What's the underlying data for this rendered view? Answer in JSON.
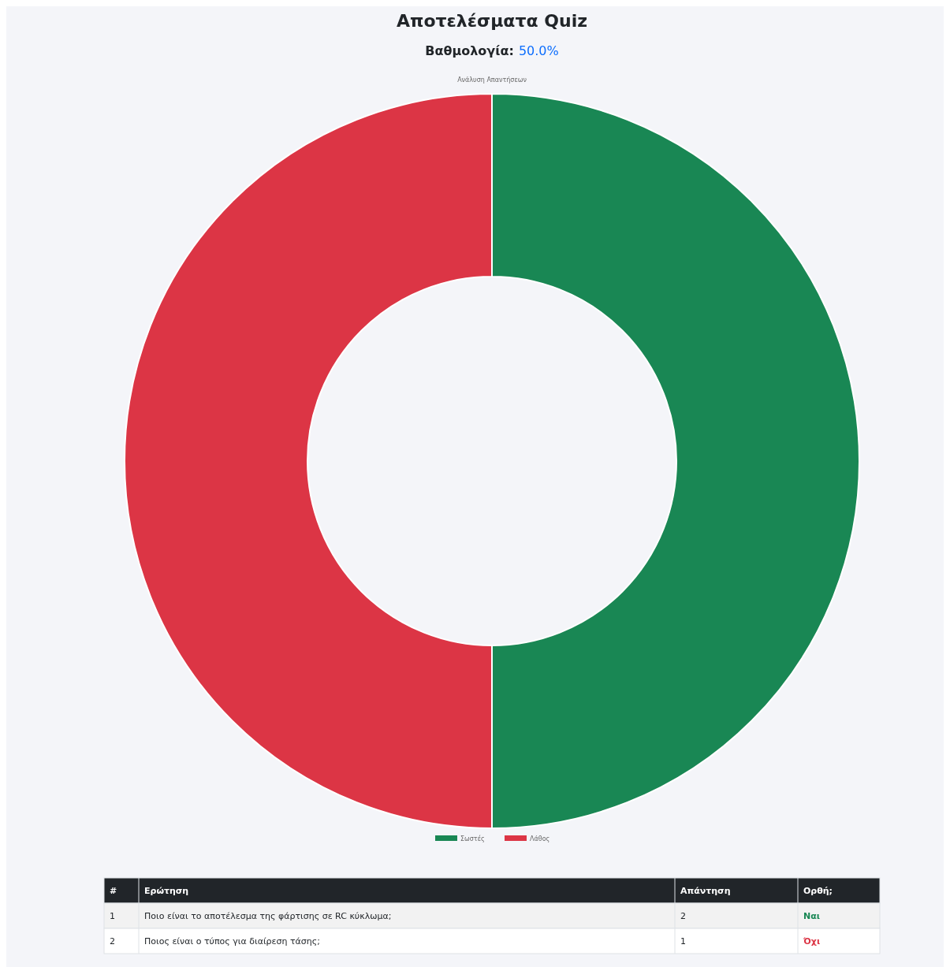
{
  "chart_data": [
    {
      "type": "other",
      "title": "Αποτελέσματα Quiz",
      "annotations": [
        "Βαθμολογία:",
        "50.0%"
      ]
    },
    {
      "type": "donut",
      "title": "Ανάλυση Απαντήσεων",
      "categories": [
        "Σωστές",
        "Λάθος"
      ],
      "values": [
        50,
        50
      ],
      "colors": [
        "#198754",
        "#dc3545"
      ],
      "legend": "bottom"
    },
    {
      "type": "other",
      "annotations": [
        "#",
        "Ερώτηση",
        "Απάντηση",
        "Ορθή;",
        "1",
        "Ποιο είναι το αποτέλεσμα της φάρτισης σε RC κύκλωμα;",
        "2",
        "Ναι",
        "2",
        "Ποιος είναι ο τύπος για διαίρεση τάσης;",
        "1",
        "Όχι"
      ],
      "colors": [
        "#198754",
        "#dc3545"
      ]
    }
  ]
}
